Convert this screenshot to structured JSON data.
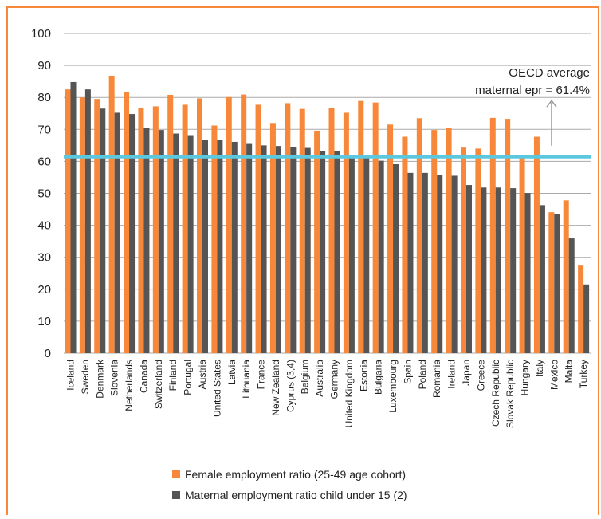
{
  "chart_data": {
    "type": "bar",
    "categories": [
      "Iceland",
      "Sweden",
      "Denmark",
      "Slovenia",
      "Netherlands",
      "Canada",
      "Switzerland",
      "Finland",
      "Portugal",
      "Austria",
      "United States",
      "Latvia",
      "Lithuania",
      "France",
      "New Zealand",
      "Cyprus (3,4)",
      "Belgium",
      "Australia",
      "Germany",
      "United Kingdom",
      "Estonia",
      "Bulgaria",
      "Luxembourg",
      "Spain",
      "Poland",
      "Romania",
      "Ireland",
      "Japan",
      "Greece",
      "Czech Republic",
      "Slovak Republic",
      "Hungary",
      "Italy",
      "Mexico",
      "Malta",
      "Turkey"
    ],
    "series": [
      {
        "name": "Female employment ratio (25-49 age cohort)",
        "color": "#f7883a",
        "values": [
          82.5,
          80,
          79.5,
          86.8,
          81.7,
          76.8,
          77.2,
          80.8,
          77.7,
          79.7,
          71.2,
          80.1,
          80.9,
          77.7,
          72,
          78.2,
          76.4,
          69.6,
          76.8,
          75.2,
          78.9,
          78.4,
          71.5,
          67.7,
          73.5,
          69.8,
          70.4,
          64.3,
          64,
          73.6,
          73.3,
          61.3,
          67.7,
          44.1,
          47.8,
          27.4
        ]
      },
      {
        "name": "Maternal employment ratio child under 15 (2)",
        "color": "#555555",
        "values": [
          84.8,
          82.5,
          76.5,
          75.2,
          74.8,
          70.5,
          69.8,
          68.7,
          68.2,
          66.7,
          66.6,
          66.1,
          65.7,
          65,
          64.8,
          64.5,
          64.2,
          63.2,
          63.1,
          61.8,
          61.4,
          60.2,
          59.1,
          56.4,
          56.4,
          55.8,
          55.5,
          52.6,
          51.8,
          51.8,
          51.6,
          50.1,
          46.3,
          43.6,
          35.9,
          21.5
        ]
      }
    ],
    "ylim": [
      0,
      100
    ],
    "yticks": [
      0,
      10,
      20,
      30,
      40,
      50,
      60,
      70,
      80,
      90,
      100
    ],
    "grid": true,
    "reference_line": {
      "value": 61.4,
      "color": "#5bc8e0"
    },
    "annotations": [
      "OECD average",
      "maternal epr = 61.4%"
    ]
  }
}
